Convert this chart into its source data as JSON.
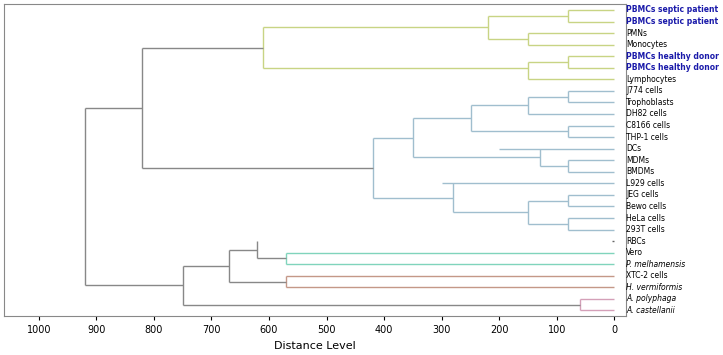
{
  "labels": [
    "PBMCs septic patient",
    "PBMCs septic patient",
    "PMNs",
    "Monocytes",
    "PBMCs healthy donor",
    "PBMCs healthy donor",
    "Lymphocytes",
    "J774 cells",
    "Trophoblasts",
    "DH82 cells",
    "C8166 cells",
    "THP-1 cells",
    "DCs",
    "MDMs",
    "BMDMs",
    "L929 cells",
    "JEG cells",
    "Bewo cells",
    "HeLa cells",
    "293T cells",
    "RBCs",
    "Vero",
    "P. melhamensis",
    "XTC-2 cells",
    "H. vermiformis",
    "A. polyphaga",
    "A. castellanii"
  ],
  "bold_labels": [
    "PBMCs septic patient",
    "PBMCs healthy donor"
  ],
  "italic_labels": [
    "P. melhamensis",
    "H. vermiformis",
    "A. polyphaga",
    "A. castellanii"
  ],
  "xlabel": "Distance Level",
  "xticks": [
    1000,
    900,
    800,
    700,
    600,
    500,
    400,
    300,
    200,
    100,
    0
  ],
  "colors": {
    "yellow_green": "#c8d484",
    "steel_blue": "#a0bece",
    "teal": "#80d4bc",
    "rose_brown": "#c49888",
    "pink_magenta": "#d4a0b8",
    "gray": "#888888",
    "dark_gray": "#666666"
  }
}
